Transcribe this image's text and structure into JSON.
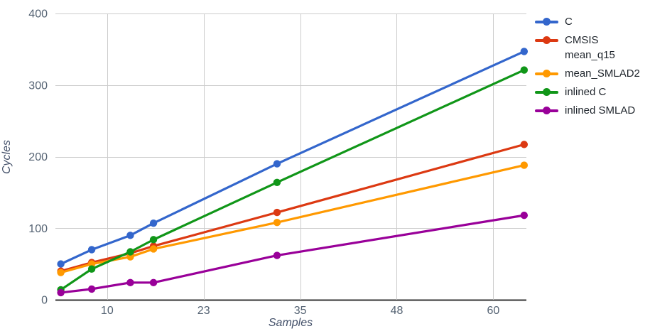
{
  "chart_data": {
    "type": "line",
    "title": "",
    "xlabel": "Samples",
    "ylabel": "Cycles",
    "x": [
      4,
      8,
      13,
      16,
      32,
      64
    ],
    "series": [
      {
        "name": "C",
        "legend_lines": [
          "C"
        ],
        "color": "#3366cc",
        "values": [
          50,
          70,
          90,
          107,
          190,
          347
        ]
      },
      {
        "name": "CMSIS mean_q15",
        "legend_lines": [
          "CMSIS",
          "mean_q15"
        ],
        "color": "#dc3912",
        "values": [
          40,
          52,
          65,
          75,
          122,
          217
        ]
      },
      {
        "name": "mean_SMLAD2",
        "legend_lines": [
          "mean_SMLAD2"
        ],
        "color": "#ff9900",
        "values": [
          38,
          50,
          60,
          71,
          108,
          188
        ]
      },
      {
        "name": "inlined C",
        "legend_lines": [
          "inlined C"
        ],
        "color": "#109618",
        "values": [
          14,
          43,
          67,
          84,
          164,
          321
        ]
      },
      {
        "name": "inlined SMLAD",
        "legend_lines": [
          "inlined SMLAD"
        ],
        "color": "#990099",
        "values": [
          10,
          15,
          24,
          24,
          62,
          118
        ]
      }
    ],
    "x_axis": {
      "range": [
        3.3,
        64.2
      ],
      "ticks": [
        {
          "value": 10,
          "label": "10"
        },
        {
          "value": 22.5,
          "label": "23"
        },
        {
          "value": 35,
          "label": "35"
        },
        {
          "value": 47.5,
          "label": "48"
        },
        {
          "value": 60,
          "label": "60"
        }
      ]
    },
    "y_axis": {
      "range": [
        0,
        400
      ],
      "ticks": [
        {
          "value": 0,
          "label": "0"
        },
        {
          "value": 100,
          "label": "100"
        },
        {
          "value": 200,
          "label": "200"
        },
        {
          "value": 300,
          "label": "300"
        },
        {
          "value": 400,
          "label": "400"
        }
      ]
    },
    "grid": true,
    "legend_position": "right",
    "colors": {
      "gridline": "#cccccc",
      "baseline": "#333333",
      "tick_text": "#556373",
      "axis_title_text": "#44516a",
      "legend_text": "#1e242b",
      "background": "#ffffff"
    }
  }
}
